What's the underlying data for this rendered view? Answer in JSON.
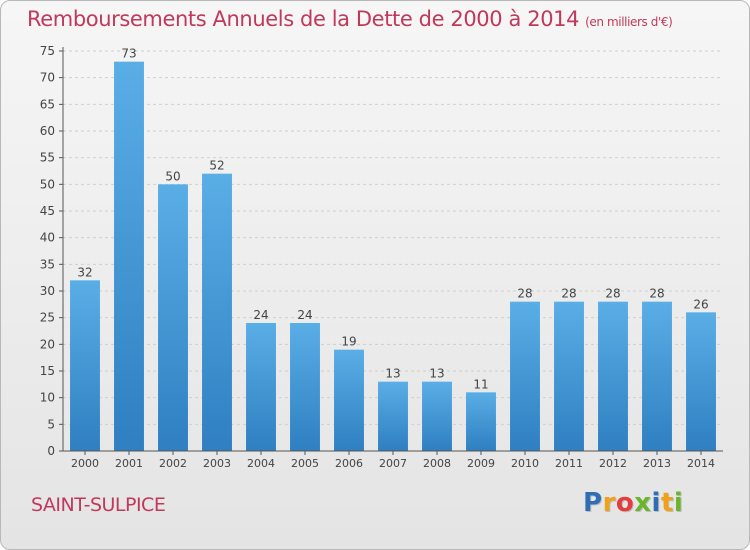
{
  "chart_data": {
    "type": "bar",
    "title": "Remboursements Annuels de la Dette de 2000 à 2014",
    "unit": "(en milliers d'€)",
    "categories": [
      "2000",
      "2001",
      "2002",
      "2003",
      "2004",
      "2005",
      "2006",
      "2007",
      "2008",
      "2009",
      "2010",
      "2011",
      "2012",
      "2013",
      "2014"
    ],
    "values": [
      32,
      73,
      50,
      52,
      24,
      24,
      19,
      13,
      13,
      11,
      28,
      28,
      28,
      28,
      26
    ],
    "ylim": [
      0,
      75
    ],
    "yticks": [
      0,
      5,
      10,
      15,
      20,
      25,
      30,
      35,
      40,
      45,
      50,
      55,
      60,
      65,
      70,
      75
    ],
    "grid": true,
    "colors": {
      "bar_light": "#5aaee6",
      "bar_dark": "#2f7fc1",
      "title": "#c0395a"
    }
  },
  "commune": "SAINT-SULPICE",
  "logo": {
    "text": "Proxiti",
    "letters": [
      {
        "ch": "P",
        "color": "#2f6db5"
      },
      {
        "ch": "r",
        "color": "#f0a11a"
      },
      {
        "ch": "o",
        "color": "#e43d3d"
      },
      {
        "ch": "x",
        "color": "#6bb52d"
      },
      {
        "ch": "i",
        "color": "#2f6db5"
      },
      {
        "ch": "t",
        "color": "#f0a11a"
      },
      {
        "ch": "i",
        "color": "#6bb52d"
      }
    ]
  }
}
